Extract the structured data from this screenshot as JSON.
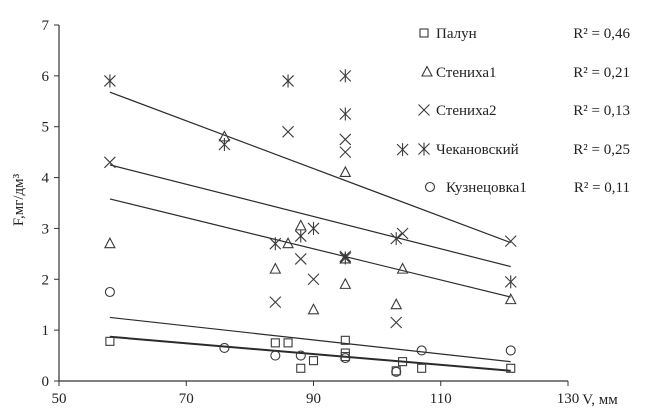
{
  "chart_data": {
    "type": "scatter",
    "title": "",
    "xlabel": "V, мм",
    "ylabel": "F,мг/дм³",
    "xlim": [
      50,
      130
    ],
    "ylim": [
      0,
      7
    ],
    "xticks": [
      50,
      70,
      90,
      110,
      130
    ],
    "yticks": [
      0,
      1,
      2,
      3,
      4,
      5,
      6,
      7
    ],
    "grid": false,
    "legend_position": "top-right",
    "series": [
      {
        "name": "Палун",
        "marker": "square",
        "r2": "R² = 0,46",
        "points": [
          [
            58,
            0.78
          ],
          [
            84,
            0.75
          ],
          [
            86,
            0.75
          ],
          [
            88,
            0.25
          ],
          [
            90,
            0.4
          ],
          [
            95,
            0.48
          ],
          [
            95,
            0.55
          ],
          [
            95,
            0.8
          ],
          [
            103,
            0.2
          ],
          [
            104,
            0.38
          ],
          [
            107,
            0.25
          ],
          [
            121,
            0.25
          ]
        ],
        "trend": [
          [
            58,
            0.87
          ],
          [
            121,
            0.2
          ]
        ]
      },
      {
        "name": "Стениха1",
        "marker": "triangle",
        "r2": "R² = 0,21",
        "points": [
          [
            58,
            2.7
          ],
          [
            76,
            4.8
          ],
          [
            84,
            2.2
          ],
          [
            86,
            2.7
          ],
          [
            88,
            3.05
          ],
          [
            90,
            1.4
          ],
          [
            95,
            1.9
          ],
          [
            95,
            2.4
          ],
          [
            95,
            4.1
          ],
          [
            103,
            1.5
          ],
          [
            104,
            2.2
          ],
          [
            121,
            1.6
          ]
        ],
        "trend": [
          [
            58,
            3.58
          ],
          [
            121,
            1.65
          ]
        ]
      },
      {
        "name": "Стениха2",
        "marker": "x",
        "r2": "R² = 0,13",
        "points": [
          [
            58,
            4.3
          ],
          [
            84,
            1.55
          ],
          [
            86,
            4.9
          ],
          [
            88,
            2.4
          ],
          [
            90,
            2.0
          ],
          [
            95,
            2.45
          ],
          [
            95,
            4.5
          ],
          [
            95,
            4.75
          ],
          [
            103,
            1.15
          ],
          [
            104,
            2.9
          ],
          [
            121,
            2.75
          ]
        ],
        "trend": [
          [
            58,
            4.25
          ],
          [
            121,
            2.25
          ]
        ]
      },
      {
        "name": "Чекановский",
        "marker": "asterisk",
        "r2": "R² = 0,25",
        "points": [
          [
            58,
            5.9
          ],
          [
            76,
            4.65
          ],
          [
            84,
            2.7
          ],
          [
            86,
            5.9
          ],
          [
            88,
            2.85
          ],
          [
            90,
            3.0
          ],
          [
            95,
            6.0
          ],
          [
            95,
            5.25
          ],
          [
            95,
            2.42
          ],
          [
            103,
            2.8
          ],
          [
            104,
            4.55
          ],
          [
            121,
            1.95
          ]
        ],
        "trend": [
          [
            58,
            5.68
          ],
          [
            121,
            2.72
          ]
        ]
      },
      {
        "name": "Кузнецовка1",
        "marker": "circle",
        "r2": "R² = 0,11",
        "points": [
          [
            58,
            1.75
          ],
          [
            76,
            0.65
          ],
          [
            84,
            0.5
          ],
          [
            88,
            0.5
          ],
          [
            95,
            0.45
          ],
          [
            103,
            0.18
          ],
          [
            107,
            0.6
          ],
          [
            121,
            0.6
          ]
        ],
        "trend": [
          [
            58,
            1.25
          ],
          [
            121,
            0.38
          ]
        ]
      }
    ]
  }
}
